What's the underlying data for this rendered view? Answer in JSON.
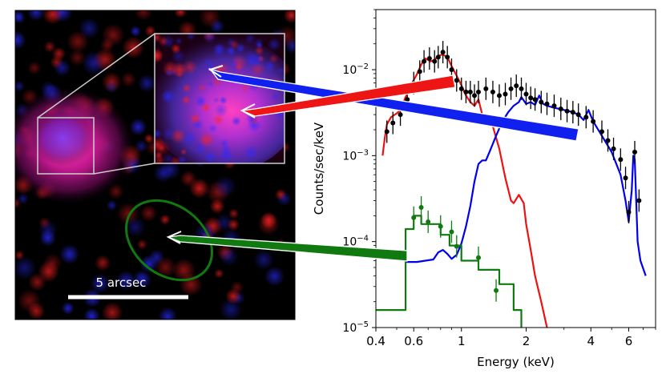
{
  "image_panel": {
    "scale_bar_label": "5 arcsec"
  },
  "colors": {
    "soft_band": "#ff2020",
    "hard_band": "#2a2aff",
    "data_points": "#000000",
    "hot_component": "#ee1111",
    "absorbed_component": "#0000ee",
    "minor_source": "#107a10",
    "frame": "#000000",
    "inset_frame": "#cccccc"
  },
  "chart_data": {
    "type": "line",
    "xscale": "log",
    "yscale": "log",
    "xlim": [
      0.4,
      8.0
    ],
    "ylim": [
      1e-05,
      0.05
    ],
    "xlabel": "Energy (keV)",
    "ylabel": "Counts/sec/keV",
    "xticks": [
      {
        "value": 0.4,
        "label": "0.4"
      },
      {
        "value": 0.6,
        "label": "0.6"
      },
      {
        "value": 1,
        "label": "1"
      },
      {
        "value": 2,
        "label": "2"
      },
      {
        "value": 4,
        "label": "4"
      },
      {
        "value": 6,
        "label": "6"
      }
    ],
    "yticks": [
      {
        "value": 1e-05,
        "base": "10",
        "exp": "−5"
      },
      {
        "value": 0.0001,
        "base": "10",
        "exp": "−4"
      },
      {
        "value": 0.001,
        "base": "10",
        "exp": "−3"
      },
      {
        "value": 0.01,
        "base": "10",
        "exp": "−2"
      }
    ],
    "series": [
      {
        "name": "hot component (red)",
        "color": "#ee1111",
        "values": [
          [
            0.43,
            0.001
          ],
          [
            0.44,
            0.0016
          ],
          [
            0.45,
            0.0023
          ],
          [
            0.47,
            0.0028
          ],
          [
            0.5,
            0.0031
          ],
          [
            0.52,
            0.0034
          ],
          [
            0.55,
            0.0048
          ],
          [
            0.58,
            0.0065
          ],
          [
            0.62,
            0.0088
          ],
          [
            0.65,
            0.0115
          ],
          [
            0.68,
            0.0135
          ],
          [
            0.72,
            0.0125
          ],
          [
            0.75,
            0.013
          ],
          [
            0.78,
            0.0145
          ],
          [
            0.82,
            0.015
          ],
          [
            0.86,
            0.014
          ],
          [
            0.9,
            0.011
          ],
          [
            0.95,
            0.0085
          ],
          [
            1.0,
            0.0066
          ],
          [
            1.05,
            0.005
          ],
          [
            1.1,
            0.0042
          ],
          [
            1.15,
            0.0038
          ],
          [
            1.2,
            0.0045
          ],
          [
            1.25,
            0.003
          ],
          [
            1.3,
            0.0025
          ],
          [
            1.35,
            0.0026
          ],
          [
            1.4,
            0.0022
          ],
          [
            1.5,
            0.0012
          ],
          [
            1.6,
            0.00055
          ],
          [
            1.7,
            0.0003
          ],
          [
            1.75,
            0.00028
          ],
          [
            1.85,
            0.00035
          ],
          [
            1.95,
            0.00028
          ],
          [
            2.0,
            0.00016
          ],
          [
            2.1,
            8e-05
          ],
          [
            2.2,
            4e-05
          ],
          [
            2.35,
            2e-05
          ],
          [
            2.5,
            1e-05
          ]
        ]
      },
      {
        "name": "absorbed component (blue)",
        "color": "#0000ee",
        "values": [
          [
            0.55,
            5.8e-05
          ],
          [
            0.62,
            5.8e-05
          ],
          [
            0.68,
            6e-05
          ],
          [
            0.74,
            6.2e-05
          ],
          [
            0.78,
            7.5e-05
          ],
          [
            0.82,
            8e-05
          ],
          [
            0.86,
            7.2e-05
          ],
          [
            0.9,
            6.3e-05
          ],
          [
            0.95,
            7e-05
          ],
          [
            1.0,
            9.5e-05
          ],
          [
            1.05,
            0.00015
          ],
          [
            1.1,
            0.00026
          ],
          [
            1.15,
            0.0005
          ],
          [
            1.2,
            0.0008
          ],
          [
            1.25,
            0.00088
          ],
          [
            1.3,
            0.00088
          ],
          [
            1.35,
            0.0011
          ],
          [
            1.45,
            0.0017
          ],
          [
            1.55,
            0.0025
          ],
          [
            1.65,
            0.0032
          ],
          [
            1.75,
            0.0038
          ],
          [
            1.85,
            0.0042
          ],
          [
            1.9,
            0.0048
          ],
          [
            2.0,
            0.004
          ],
          [
            2.1,
            0.0042
          ],
          [
            2.2,
            0.0039
          ],
          [
            2.3,
            0.005
          ],
          [
            2.4,
            0.004
          ],
          [
            2.5,
            0.0038
          ],
          [
            2.7,
            0.0036
          ],
          [
            3.0,
            0.0034
          ],
          [
            3.3,
            0.0032
          ],
          [
            3.5,
            0.003
          ],
          [
            3.7,
            0.0026
          ],
          [
            3.9,
            0.0034
          ],
          [
            4.1,
            0.0025
          ],
          [
            4.5,
            0.0017
          ],
          [
            5.0,
            0.0011
          ],
          [
            5.5,
            0.0006
          ],
          [
            5.8,
            0.0003
          ],
          [
            6.0,
            0.00017
          ],
          [
            6.2,
            0.0004
          ],
          [
            6.3,
            0.001
          ],
          [
            6.4,
            0.0009
          ],
          [
            6.5,
            0.0003
          ],
          [
            6.6,
            0.0001
          ],
          [
            6.8,
            6e-05
          ],
          [
            7.2,
            4e-05
          ]
        ]
      },
      {
        "name": "minor source model (green)",
        "color": "#107a10",
        "values": [
          [
            0.4,
            1.6e-05
          ],
          [
            0.55,
            1.6e-05
          ],
          [
            0.55,
            0.00014
          ],
          [
            0.6,
            0.00014
          ],
          [
            0.6,
            0.0002
          ],
          [
            0.65,
            0.0002
          ],
          [
            0.65,
            0.00016
          ],
          [
            0.8,
            0.00016
          ],
          [
            0.8,
            0.00012
          ],
          [
            0.88,
            0.00012
          ],
          [
            0.88,
            9e-05
          ],
          [
            1.0,
            9e-05
          ],
          [
            1.0,
            6e-05
          ],
          [
            1.2,
            6e-05
          ],
          [
            1.2,
            4.7e-05
          ],
          [
            1.5,
            4.7e-05
          ],
          [
            1.5,
            3.2e-05
          ],
          [
            1.75,
            3.2e-05
          ],
          [
            1.75,
            1.6e-05
          ],
          [
            1.9,
            1.6e-05
          ],
          [
            1.9,
            7e-06
          ]
        ]
      }
    ],
    "data_points": [
      {
        "name": "observed spectrum (black)",
        "color": "#000000",
        "values": [
          [
            0.45,
            0.0019
          ],
          [
            0.48,
            0.0024
          ],
          [
            0.52,
            0.003
          ],
          [
            0.56,
            0.0045
          ],
          [
            0.6,
            0.007
          ],
          [
            0.64,
            0.0095
          ],
          [
            0.67,
            0.0125
          ],
          [
            0.71,
            0.0135
          ],
          [
            0.75,
            0.0125
          ],
          [
            0.78,
            0.014
          ],
          [
            0.82,
            0.016
          ],
          [
            0.86,
            0.014
          ],
          [
            0.9,
            0.01
          ],
          [
            0.95,
            0.0075
          ],
          [
            1.0,
            0.006
          ],
          [
            1.05,
            0.0055
          ],
          [
            1.1,
            0.0055
          ],
          [
            1.15,
            0.005
          ],
          [
            1.2,
            0.0055
          ],
          [
            1.3,
            0.006
          ],
          [
            1.4,
            0.0055
          ],
          [
            1.5,
            0.005
          ],
          [
            1.6,
            0.0052
          ],
          [
            1.7,
            0.006
          ],
          [
            1.8,
            0.0065
          ],
          [
            1.9,
            0.006
          ],
          [
            2.0,
            0.0052
          ],
          [
            2.1,
            0.0047
          ],
          [
            2.2,
            0.0045
          ],
          [
            2.35,
            0.0042
          ],
          [
            2.5,
            0.004
          ],
          [
            2.7,
            0.0038
          ],
          [
            2.9,
            0.0035
          ],
          [
            3.1,
            0.0033
          ],
          [
            3.3,
            0.0032
          ],
          [
            3.5,
            0.003
          ],
          [
            3.8,
            0.0028
          ],
          [
            4.1,
            0.0025
          ],
          [
            4.5,
            0.0019
          ],
          [
            4.8,
            0.0015
          ],
          [
            5.1,
            0.0012
          ],
          [
            5.5,
            0.0009
          ],
          [
            5.8,
            0.00055
          ],
          [
            6.0,
            0.00022
          ],
          [
            6.4,
            0.0011
          ],
          [
            6.7,
            0.0003
          ]
        ]
      },
      {
        "name": "minor source data (green)",
        "color": "#107a10",
        "values": [
          [
            0.6,
            0.00019
          ],
          [
            0.65,
            0.00025
          ],
          [
            0.7,
            0.00017
          ],
          [
            0.8,
            0.00015
          ],
          [
            0.9,
            0.00013
          ],
          [
            0.95,
            8.8e-05
          ],
          [
            1.2,
            6.5e-05
          ],
          [
            1.45,
            2.7e-05
          ]
        ]
      }
    ]
  }
}
